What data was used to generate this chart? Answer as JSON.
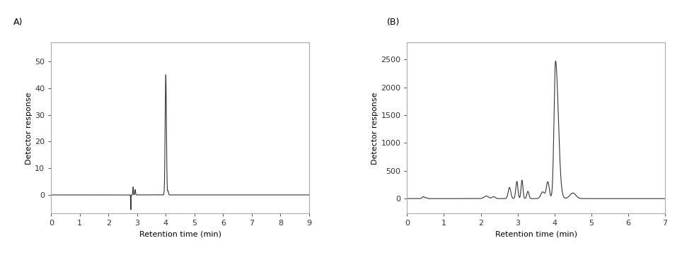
{
  "panel_A": {
    "label": "A)",
    "xlabel": "Retention time (min)",
    "ylabel": "Detector response",
    "xlim": [
      0,
      9
    ],
    "ylim": [
      -7,
      57
    ],
    "xticks": [
      0,
      1,
      2,
      3,
      4,
      5,
      6,
      7,
      8,
      9
    ],
    "yticks": [
      0,
      10,
      20,
      30,
      40,
      50
    ],
    "line_color": "#333333",
    "line_width": 0.8
  },
  "panel_B": {
    "label": "(B)",
    "xlabel": "Retention time (min)",
    "ylabel": "Detector response",
    "xlim": [
      0,
      7
    ],
    "ylim": [
      -270,
      2800
    ],
    "xticks": [
      0,
      1,
      2,
      3,
      4,
      5,
      6,
      7
    ],
    "yticks": [
      0,
      500,
      1000,
      1500,
      2000,
      2500
    ],
    "line_color": "#333333",
    "line_width": 0.8
  },
  "background_color": "#ffffff",
  "spine_color": "#aaaaaa",
  "tick_color": "#333333",
  "label_fontsize": 8,
  "tick_fontsize": 8,
  "panel_label_fontsize": 9
}
